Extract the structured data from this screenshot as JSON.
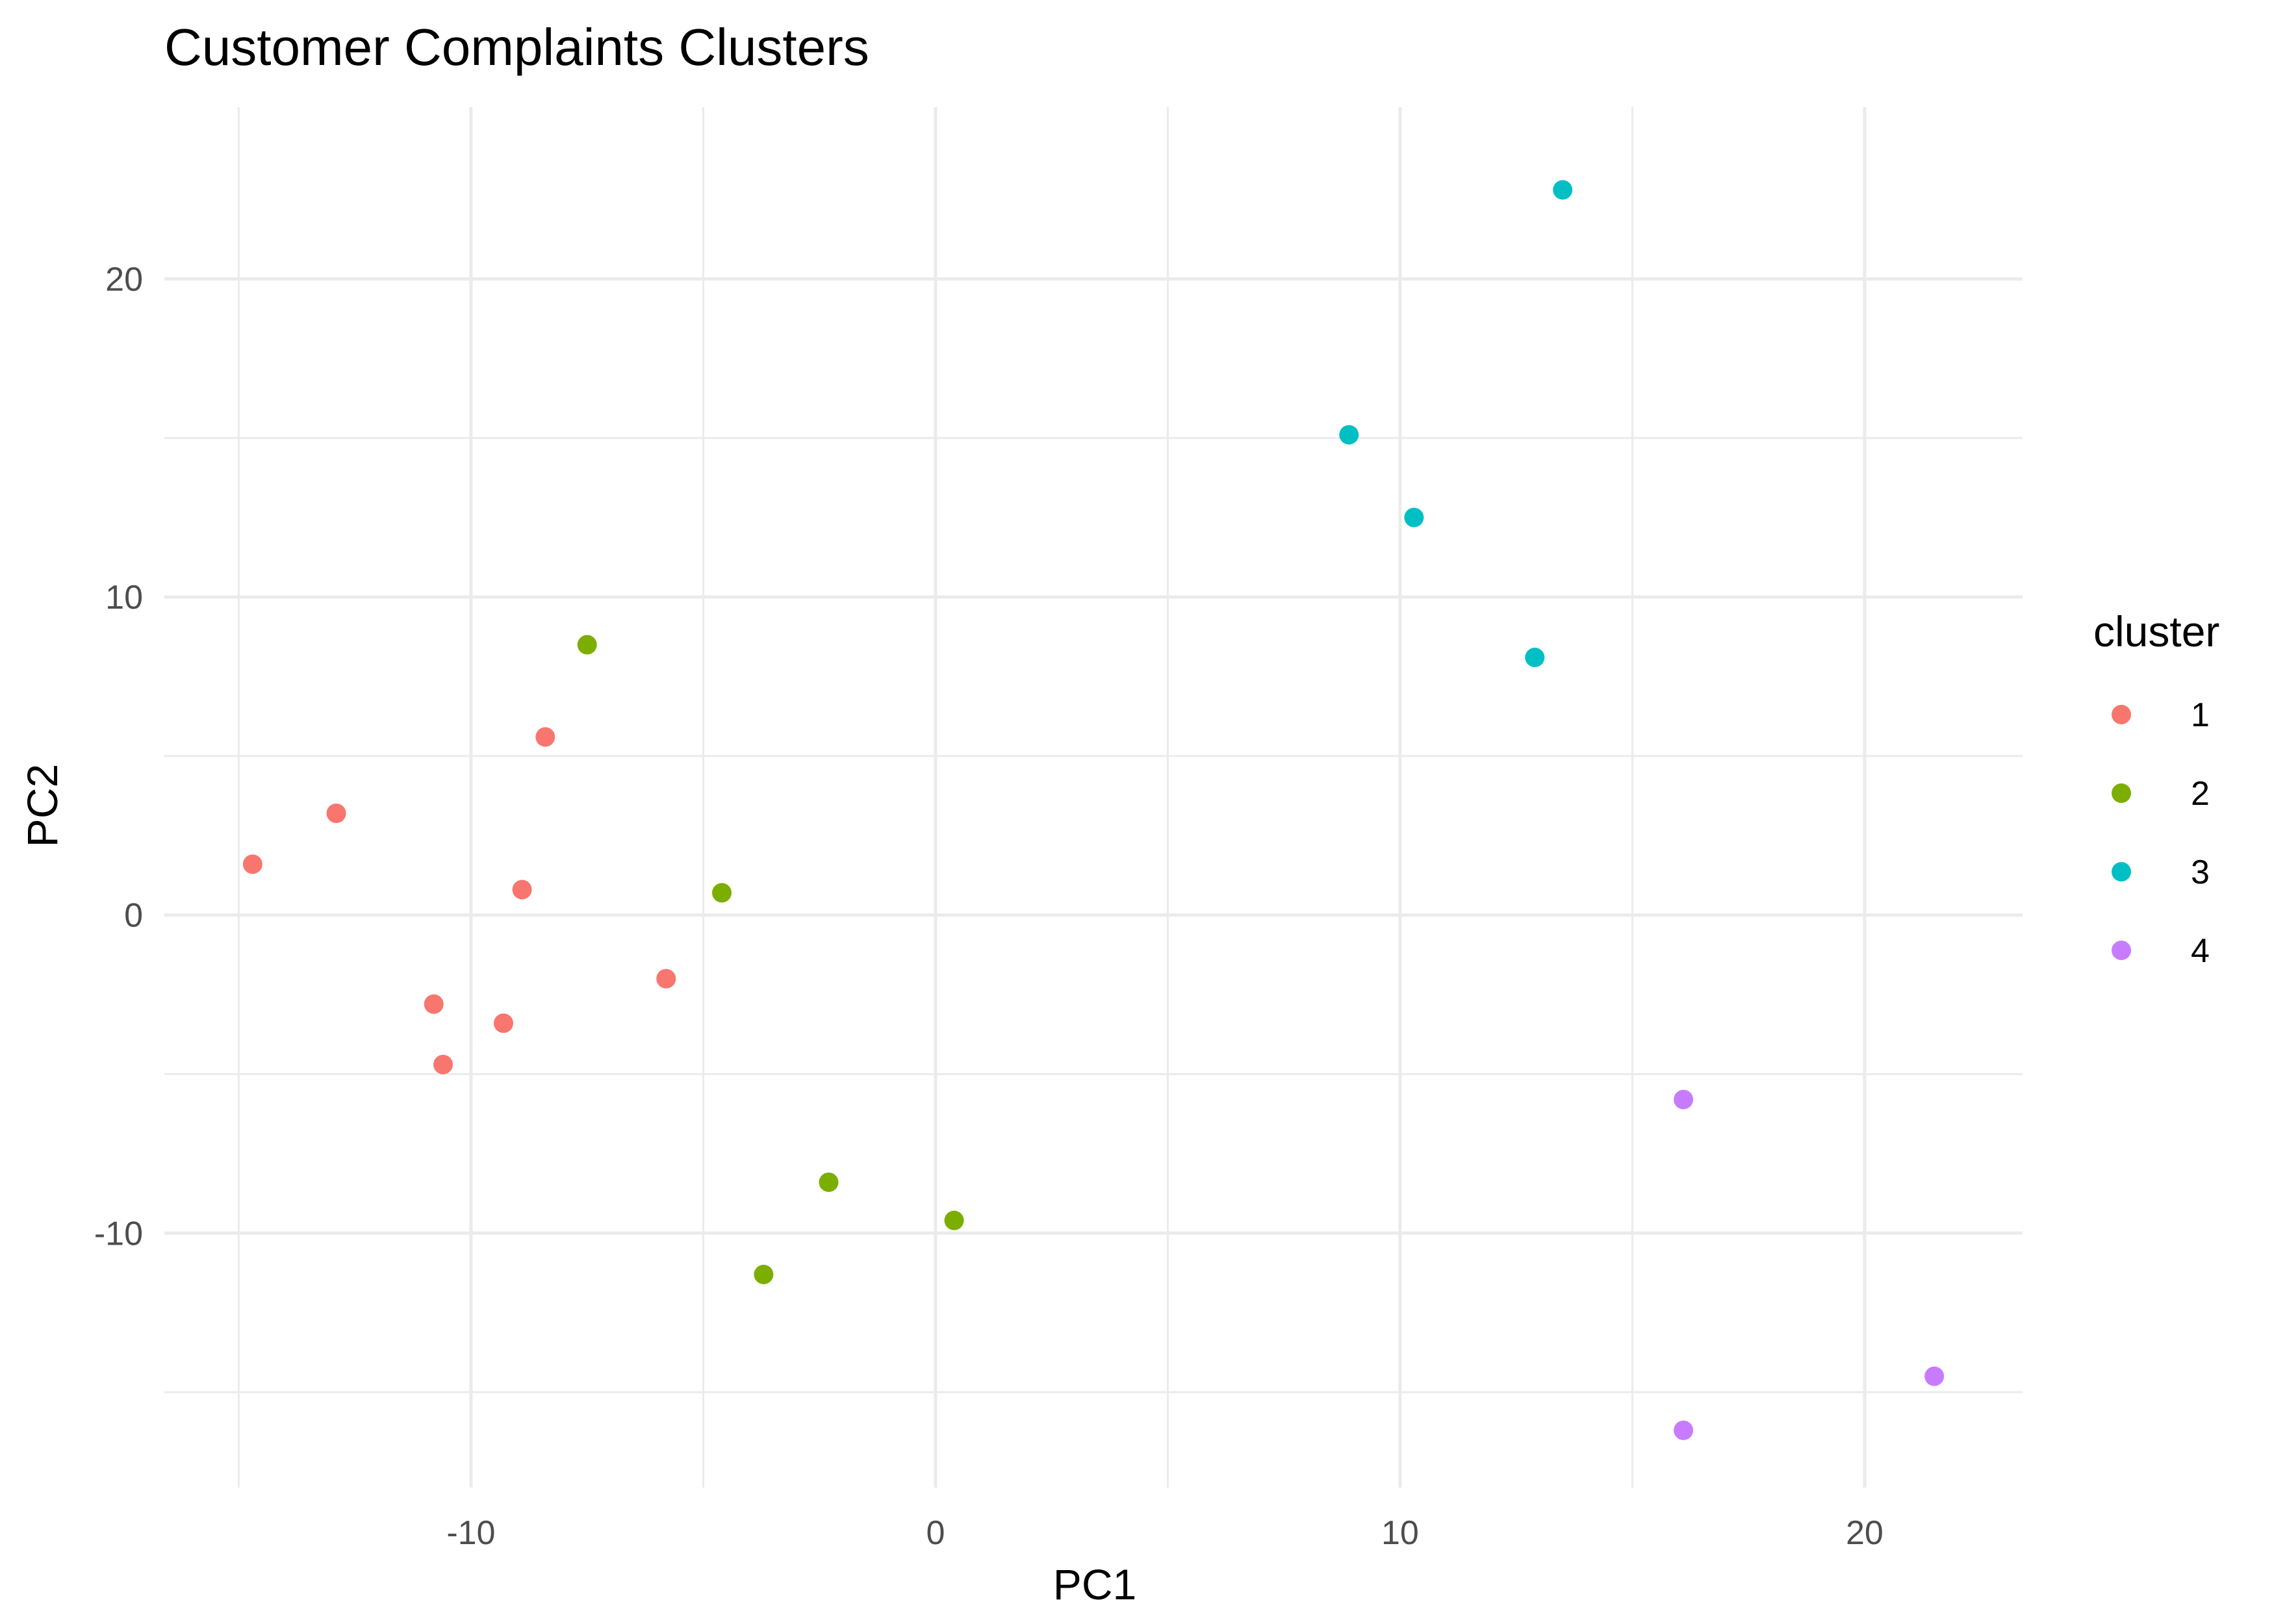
{
  "chart_data": {
    "type": "scatter",
    "title": "Customer Complaints Clusters",
    "xlabel": "PC1",
    "ylabel": "PC2",
    "xlim": [
      -16.6,
      23.4
    ],
    "ylim": [
      -18.0,
      25.4
    ],
    "x_ticks": [
      -10,
      0,
      10,
      20
    ],
    "y_ticks": [
      -10,
      0,
      10,
      20
    ],
    "x_minor": [
      -15,
      -5,
      5,
      15
    ],
    "y_minor": [
      -15,
      -5,
      5,
      15
    ],
    "grid": true,
    "legend_title": "cluster",
    "legend_position": "right",
    "series": [
      {
        "name": "1",
        "color": "#F8766D",
        "points": [
          {
            "x": -14.7,
            "y": 1.6
          },
          {
            "x": -12.9,
            "y": 3.2
          },
          {
            "x": -8.4,
            "y": 5.6
          },
          {
            "x": -8.9,
            "y": 0.8
          },
          {
            "x": -10.8,
            "y": -2.8
          },
          {
            "x": -9.3,
            "y": -3.4
          },
          {
            "x": -10.6,
            "y": -4.7
          },
          {
            "x": -5.8,
            "y": -2.0
          }
        ]
      },
      {
        "name": "2",
        "color": "#7CAE00",
        "points": [
          {
            "x": -7.5,
            "y": 8.5
          },
          {
            "x": -4.6,
            "y": 0.7
          },
          {
            "x": -2.3,
            "y": -8.4
          },
          {
            "x": 0.4,
            "y": -9.6
          },
          {
            "x": -3.7,
            "y": -11.3
          }
        ]
      },
      {
        "name": "3",
        "color": "#00BFC4",
        "points": [
          {
            "x": 13.5,
            "y": 22.8
          },
          {
            "x": 8.9,
            "y": 15.1
          },
          {
            "x": 10.3,
            "y": 12.5
          },
          {
            "x": 12.9,
            "y": 8.1
          }
        ]
      },
      {
        "name": "4",
        "color": "#C77CFF",
        "points": [
          {
            "x": 16.1,
            "y": -5.8
          },
          {
            "x": 21.5,
            "y": -14.5
          },
          {
            "x": 16.1,
            "y": -16.2
          }
        ]
      }
    ]
  }
}
